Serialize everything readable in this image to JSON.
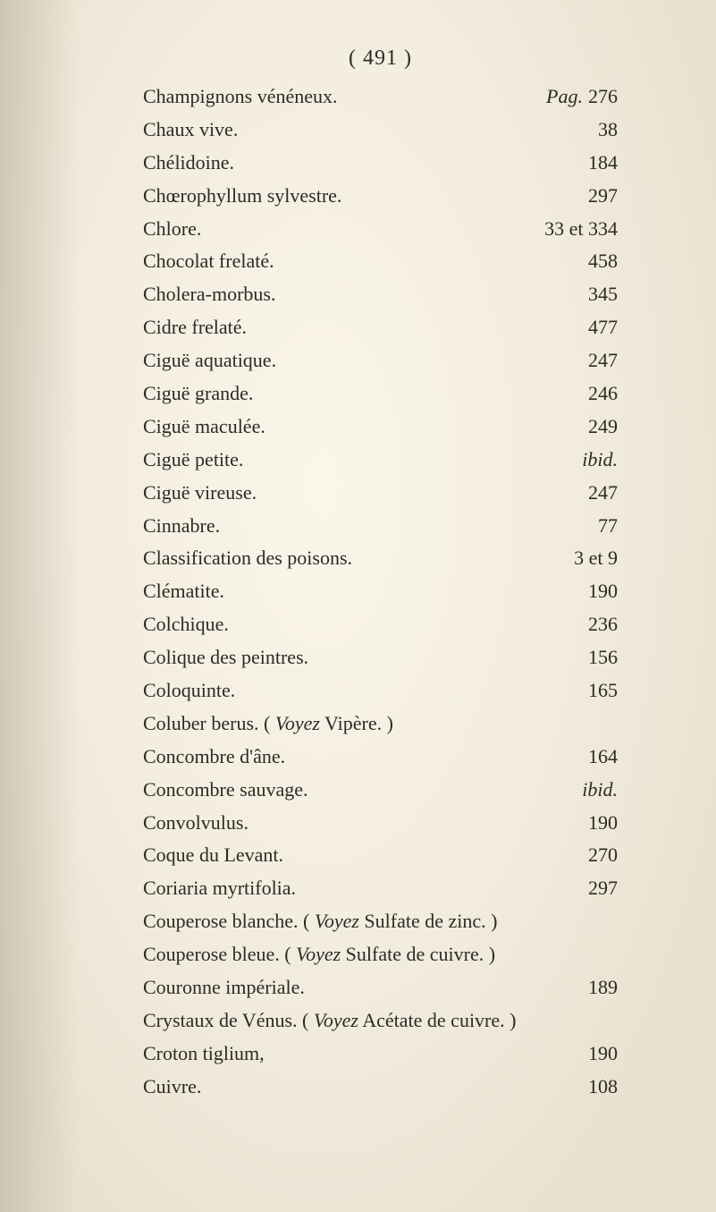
{
  "header": "( 491 )",
  "page_label": "Pag.",
  "entries": [
    {
      "label": "Champignons vénéneux.",
      "value": "276",
      "show_page_label": true
    },
    {
      "label": "Chaux vive.",
      "value": "38"
    },
    {
      "label": "Chélidoine.",
      "value": "184"
    },
    {
      "label": "Chœrophyllum sylvestre.",
      "value": "297"
    },
    {
      "label": "Chlore.",
      "value": "33 et 334"
    },
    {
      "label": "Chocolat frelaté.",
      "value": "458"
    },
    {
      "label": "Cholera-morbus.",
      "value": "345"
    },
    {
      "label": "Cidre frelaté.",
      "value": "477"
    },
    {
      "label": "Ciguë aquatique.",
      "value": "247"
    },
    {
      "label": "Ciguë grande.",
      "value": "246"
    },
    {
      "label": "Ciguë maculée.",
      "value": "249"
    },
    {
      "label": "Ciguë petite.",
      "value": "ibid.",
      "italic_value": true
    },
    {
      "label": "Ciguë vireuse.",
      "value": "247"
    },
    {
      "label": "Cinnabre.",
      "value": "77"
    },
    {
      "label": "Classification des poisons.",
      "value": "3 et 9"
    },
    {
      "label": "Clématite.",
      "value": "190"
    },
    {
      "label": "Colchique.",
      "value": "236"
    },
    {
      "label": "Colique des peintres.",
      "value": "156"
    },
    {
      "label": "Coloquinte.",
      "value": "165"
    },
    {
      "label_html": "Coluber berus. ( <i>Voyez</i> Vipère. )",
      "value": ""
    },
    {
      "label": "Concombre d'âne.",
      "value": "164"
    },
    {
      "label": "Concombre sauvage.",
      "value": "ibid.",
      "italic_value": true
    },
    {
      "label": "Convolvulus.",
      "value": "190"
    },
    {
      "label": "Coque du Levant.",
      "value": "270"
    },
    {
      "label": "Coriaria myrtifolia.",
      "value": "297"
    },
    {
      "label_html": "Couperose blanche. ( <i>Voyez</i> Sulfate de zinc. )",
      "value": ""
    },
    {
      "label_html": "Couperose bleue. ( <i>Voyez</i> Sulfate de cuivre. )",
      "value": ""
    },
    {
      "label": "Couronne impériale.",
      "value": "189"
    },
    {
      "label_html": "Crystaux de Vénus. ( <i>Voyez</i> Acétate de cuivre. )",
      "value": ""
    },
    {
      "label": "Croton tiglium,",
      "value": "190"
    },
    {
      "label": "Cuivre.",
      "value": "108"
    }
  ]
}
